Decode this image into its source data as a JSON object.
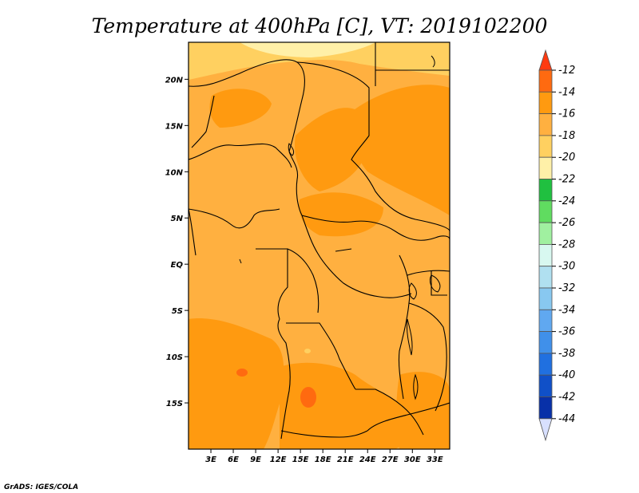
{
  "chart_data": {
    "type": "heatmap",
    "title": "Temperature at 400hPa [C], VT: 2019102200",
    "variable": "Temperature at 400hPa",
    "units": "C",
    "valid_time": "2019102200",
    "x_ticks": [
      "3E",
      "6E",
      "9E",
      "12E",
      "15E",
      "18E",
      "21E",
      "24E",
      "27E",
      "30E",
      "33E"
    ],
    "y_ticks": [
      "20N",
      "15N",
      "10N",
      "5N",
      "EQ",
      "5S",
      "10S",
      "15S"
    ],
    "lon_range": [
      0,
      35
    ],
    "lat_range": [
      -20,
      24
    ],
    "colorbar": {
      "labels": [
        "-12",
        "-14",
        "-16",
        "-18",
        "-20",
        "-22",
        "-24",
        "-26",
        "-28",
        "-30",
        "-32",
        "-34",
        "-36",
        "-38",
        "-40",
        "-42",
        "-44"
      ],
      "colors": [
        "#ff6a10",
        "#ff9a10",
        "#ffb040",
        "#ffd060",
        "#fff0a8",
        "#20c040",
        "#60dc60",
        "#a0f0a0",
        "#d8f8f0",
        "#b0e0f0",
        "#88c8f0",
        "#60a8f0",
        "#4090ea",
        "#2070e0",
        "#1050c8",
        "#0830a8",
        "#000078"
      ],
      "overflow_high": "#ff3a10",
      "overflow_low": "#d8e0ff"
    },
    "field_regions": [
      {
        "label": "-16 to -14 (dominant)",
        "color": "#ffb040"
      },
      {
        "label": "-14 to -12",
        "color": "#ff9a10"
      },
      {
        "label": "-18 to -16",
        "color": "#ffd060"
      },
      {
        "label": "-20 to -18",
        "color": "#fff0a8"
      },
      {
        "label": "-12 and warmer",
        "color": "#ff6a10"
      }
    ]
  },
  "credit": "GrADS: IGES/COLA"
}
